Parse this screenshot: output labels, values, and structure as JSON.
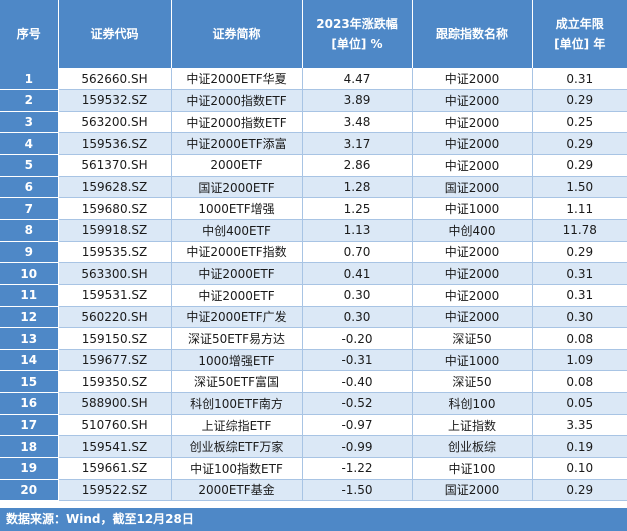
{
  "table": {
    "headers": [
      [
        "序号"
      ],
      [
        "证券代码"
      ],
      [
        "证券简称"
      ],
      [
        "2023年涨跌幅",
        "[单位] %"
      ],
      [
        "跟踪指数名称"
      ],
      [
        "成立年限",
        "[单位] 年"
      ]
    ],
    "rows": [
      [
        "1",
        "562660.SH",
        "中证2000ETF华夏",
        "4.47",
        "中证2000",
        "0.31"
      ],
      [
        "2",
        "159532.SZ",
        "中证2000指数ETF",
        "3.89",
        "中证2000",
        "0.29"
      ],
      [
        "3",
        "563200.SH",
        "中证2000指数ETF",
        "3.48",
        "中证2000",
        "0.25"
      ],
      [
        "4",
        "159536.SZ",
        "中证2000ETF添富",
        "3.17",
        "中证2000",
        "0.29"
      ],
      [
        "5",
        "561370.SH",
        "2000ETF",
        "2.86",
        "中证2000",
        "0.29"
      ],
      [
        "6",
        "159628.SZ",
        "国证2000ETF",
        "1.28",
        "国证2000",
        "1.50"
      ],
      [
        "7",
        "159680.SZ",
        "1000ETF增强",
        "1.25",
        "中证1000",
        "1.11"
      ],
      [
        "8",
        "159918.SZ",
        "中创400ETF",
        "1.13",
        "中创400",
        "11.78"
      ],
      [
        "9",
        "159535.SZ",
        "中证2000ETF指数",
        "0.70",
        "中证2000",
        "0.29"
      ],
      [
        "10",
        "563300.SH",
        "中证2000ETF",
        "0.41",
        "中证2000",
        "0.31"
      ],
      [
        "11",
        "159531.SZ",
        "中证2000ETF",
        "0.30",
        "中证2000",
        "0.31"
      ],
      [
        "12",
        "560220.SH",
        "中证2000ETF广发",
        "0.30",
        "中证2000",
        "0.30"
      ],
      [
        "13",
        "159150.SZ",
        "深证50ETF易方达",
        "-0.20",
        "深证50",
        "0.08"
      ],
      [
        "14",
        "159677.SZ",
        "1000增强ETF",
        "-0.31",
        "中证1000",
        "1.09"
      ],
      [
        "15",
        "159350.SZ",
        "深证50ETF富国",
        "-0.40",
        "深证50",
        "0.08"
      ],
      [
        "16",
        "588900.SH",
        "科创100ETF南方",
        "-0.52",
        "科创100",
        "0.05"
      ],
      [
        "17",
        "510760.SH",
        "上证综指ETF",
        "-0.97",
        "上证指数",
        "3.35"
      ],
      [
        "18",
        "159541.SZ",
        "创业板综ETF万家",
        "-0.99",
        "创业板综",
        "0.19"
      ],
      [
        "19",
        "159661.SZ",
        "中证100指数ETF",
        "-1.22",
        "中证100",
        "0.10"
      ],
      [
        "20",
        "159522.SZ",
        "2000ETF基金",
        "-1.50",
        "国证2000",
        "0.29"
      ]
    ]
  },
  "footer": {
    "source_text": "数据来源：Wind，截至12月28日"
  },
  "colors": {
    "header_bg": "#4e88c7",
    "stripe": "#dbe8f6",
    "grid_line": "#a8c4e4"
  }
}
